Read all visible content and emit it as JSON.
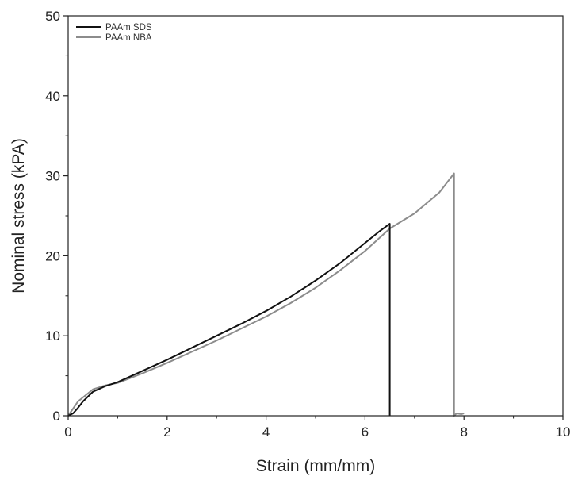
{
  "chart_data": {
    "type": "line",
    "xlabel": "Strain (mm/mm)",
    "ylabel": "Nominal stress (kPA)",
    "xlim": [
      0,
      10
    ],
    "ylim": [
      0,
      50
    ],
    "x_ticks": [
      "0",
      "2",
      "4",
      "6",
      "8",
      "10"
    ],
    "y_ticks": [
      "0",
      "10",
      "20",
      "30",
      "40",
      "50"
    ],
    "grid": false,
    "legend_position": "top-left",
    "series": [
      {
        "name": "PAAm SDS",
        "color": "#111111",
        "x": [
          0.0,
          0.1,
          0.2,
          0.3,
          0.5,
          0.75,
          1.0,
          1.5,
          2.0,
          2.5,
          3.0,
          3.5,
          4.0,
          4.5,
          5.0,
          5.5,
          6.0,
          6.3,
          6.5,
          6.5
        ],
        "y": [
          0.0,
          0.3,
          1.0,
          1.8,
          3.0,
          3.7,
          4.2,
          5.6,
          7.0,
          8.5,
          10.0,
          11.5,
          13.1,
          14.9,
          16.9,
          19.1,
          21.6,
          23.1,
          24.0,
          0.0
        ]
      },
      {
        "name": "PAAm NBA",
        "color": "#8c8c8c",
        "x": [
          0.0,
          0.2,
          0.5,
          0.75,
          1.0,
          1.5,
          2.0,
          2.5,
          3.0,
          3.5,
          4.0,
          4.5,
          5.0,
          5.5,
          6.0,
          6.5,
          7.0,
          7.5,
          7.8,
          7.8,
          7.85,
          7.95,
          8.0
        ],
        "y": [
          0.0,
          1.8,
          3.3,
          3.8,
          4.1,
          5.3,
          6.6,
          8.0,
          9.4,
          10.9,
          12.4,
          14.1,
          16.0,
          18.2,
          20.6,
          23.4,
          25.3,
          27.9,
          30.3,
          0.0,
          0.3,
          0.2,
          0.3
        ]
      }
    ]
  }
}
